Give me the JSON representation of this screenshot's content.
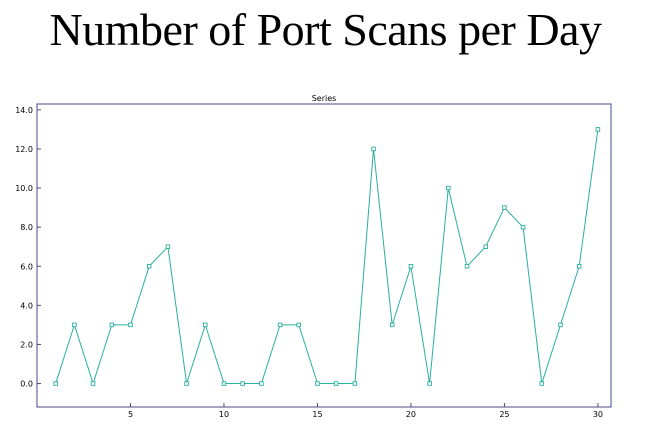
{
  "page": {
    "title": "Number of Port Scans per Day"
  },
  "colors": {
    "series": "#2ab0a0",
    "axis": "#4a4a88",
    "background": "#ffffff"
  },
  "chart_data": {
    "type": "line",
    "title": "Number of Port Scans per Day",
    "xlabel": "",
    "ylabel": "",
    "legend": "Series",
    "xlim": [
      0,
      30.7
    ],
    "ylim": [
      -1.2,
      14.3
    ],
    "x_ticks": [
      5,
      10,
      15,
      20,
      25,
      30
    ],
    "y_ticks": [
      0,
      2,
      4,
      6,
      8,
      10,
      12,
      14
    ],
    "y_tick_labels": [
      "0.0",
      "2.0",
      "4.0",
      "6.0",
      "8.0",
      "10.0",
      "12.0",
      "14.0"
    ],
    "series": [
      {
        "name": "Series",
        "x": [
          1,
          2,
          3,
          4,
          5,
          6,
          7,
          8,
          9,
          10,
          11,
          12,
          13,
          14,
          15,
          16,
          17,
          18,
          19,
          20,
          21,
          22,
          23,
          24,
          25,
          26,
          27,
          28,
          29,
          30
        ],
        "values": [
          0,
          3,
          0,
          3,
          3,
          6,
          7,
          0,
          3,
          0,
          0,
          0,
          3,
          3,
          0,
          0,
          0,
          12,
          3,
          6,
          0,
          10,
          6,
          7,
          9,
          8,
          0,
          3,
          6,
          13
        ]
      }
    ],
    "grid": false
  }
}
